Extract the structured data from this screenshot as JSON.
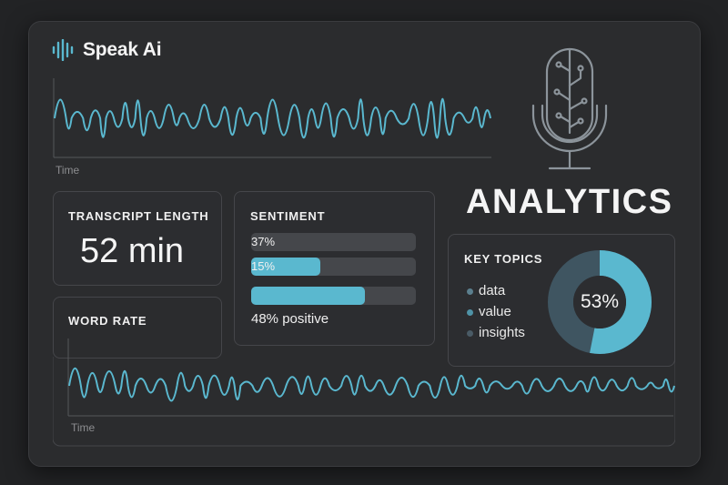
{
  "app": {
    "name": "Speak Ai"
  },
  "top_chart": {
    "axis_label": "Time"
  },
  "hero": {
    "title": "ANALYTICS"
  },
  "transcript": {
    "label": "TRANSCRIPT LENGTH",
    "value": "52 min"
  },
  "sentiment": {
    "label": "SENTIMENT",
    "bars": [
      {
        "text": "37%",
        "fill": 0.0
      },
      {
        "text": "15%",
        "fill": 0.42
      },
      {
        "text": "",
        "fill": 0.69
      }
    ],
    "summary": "48% positive"
  },
  "key_topics": {
    "label": "KEY TOPICS",
    "items": [
      "data",
      "value",
      "insights"
    ],
    "donut_percent_label": "53%",
    "donut_fraction": 0.53
  },
  "word_rate": {
    "label": "WORD RATE",
    "axis_label": "Time"
  },
  "colors": {
    "accent": "#5ab8cf",
    "accent_dark": "#3f5561",
    "track": "#45474b",
    "panel": "#2b2c2e",
    "background": "#222325"
  },
  "icons": {
    "logo": "sound-wave-icon",
    "hero": "circuit-microphone-icon"
  }
}
